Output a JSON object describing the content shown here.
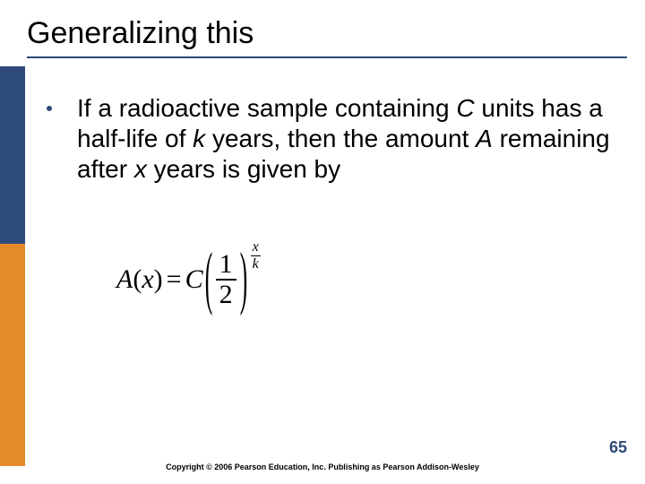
{
  "colors": {
    "title_underline": "#2e4a7a",
    "title_text": "#000000",
    "stripe_navy": "#2e4a7a",
    "stripe_orange": "#e38b2a",
    "bullet_dot": "#2e4a7a",
    "body_text": "#000000",
    "page_num": "#2e4a7a",
    "copyright": "#000000"
  },
  "typography": {
    "title_fontsize": 34,
    "body_fontsize": 28,
    "formula_fontsize": 30,
    "copyright_fontsize": 9,
    "page_num_fontsize": 18
  },
  "title": "Generalizing this",
  "bullet": {
    "parts": [
      {
        "text": "If a radioactive sample containing ",
        "italic": false
      },
      {
        "text": "C",
        "italic": true
      },
      {
        "text": " units has a half-life of ",
        "italic": false
      },
      {
        "text": "k",
        "italic": true
      },
      {
        "text": " years, then the amount ",
        "italic": false
      },
      {
        "text": "A",
        "italic": true
      },
      {
        "text": " remaining after ",
        "italic": false
      },
      {
        "text": "x",
        "italic": true
      },
      {
        "text": " years is given by",
        "italic": false
      }
    ]
  },
  "formula": {
    "lhs_func": "A",
    "lhs_arg": "x",
    "coef": "C",
    "base_num": "1",
    "base_den": "2",
    "exp_num": "x",
    "exp_den": "k"
  },
  "copyright": "Copyright © 2006 Pearson Education, Inc.  Publishing as Pearson Addison-Wesley",
  "page_num": "65"
}
